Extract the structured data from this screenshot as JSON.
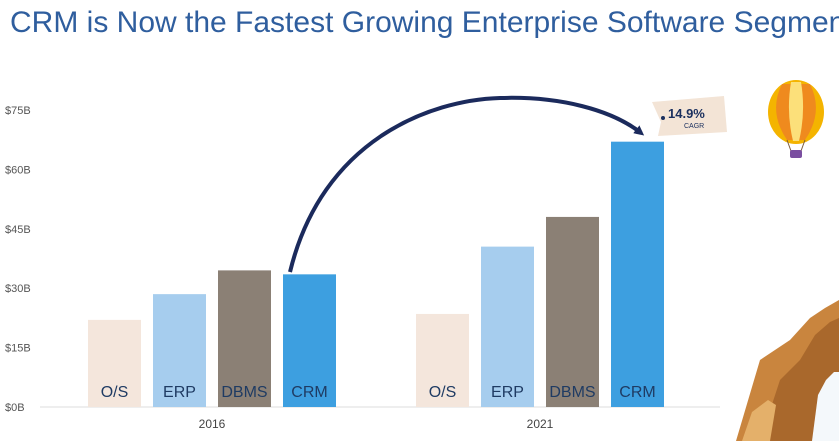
{
  "title": "CRM is Now the Fastest Growing Enterprise Software Segment",
  "colors": {
    "O/S": "#f4e6dc",
    "ERP": "#a6cdee",
    "DBMS": "#8b8075",
    "CRM": "#3d9fe0",
    "arrow": "#1b2a5c",
    "tag": "#f3e4d6",
    "mountain": "#c9853e"
  },
  "annotation": {
    "value": "14.9%",
    "label": "CAGR"
  },
  "decorations": [
    "hot-air-balloon-icon",
    "mountain-waterfall-illustration"
  ],
  "chart_data": {
    "type": "bar",
    "groups": [
      "2016",
      "2021"
    ],
    "categories": [
      "O/S",
      "ERP",
      "DBMS",
      "CRM"
    ],
    "series": [
      {
        "group": "2016",
        "values": [
          22,
          28.5,
          34.5,
          33.5
        ]
      },
      {
        "group": "2021",
        "values": [
          23.5,
          40.5,
          48,
          67
        ]
      }
    ],
    "yticks": [
      "$0B",
      "$15B",
      "$30B",
      "$45B",
      "$60B",
      "$75B"
    ],
    "ylim": [
      0,
      75
    ],
    "grid": false,
    "legend": "none"
  }
}
